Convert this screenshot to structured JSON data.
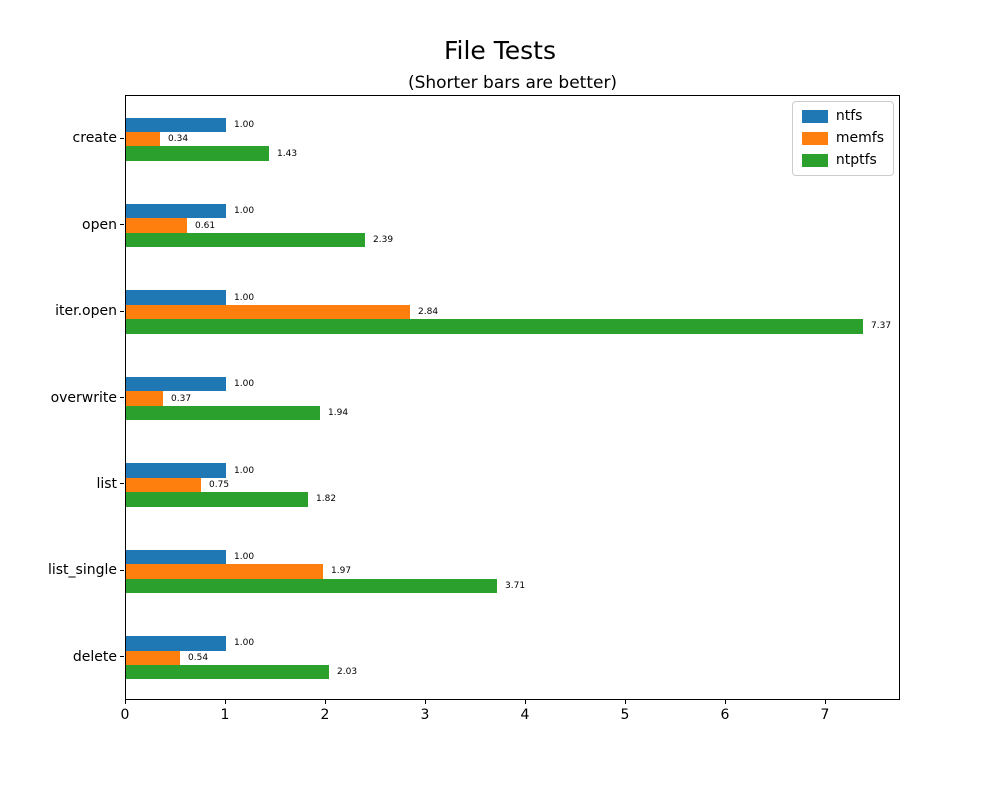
{
  "chart_data": {
    "type": "bar",
    "orientation": "horizontal",
    "title": "File Tests",
    "subtitle": "(Shorter bars are better)",
    "xlabel": "",
    "ylabel": "",
    "grid": false,
    "categories": [
      "create",
      "open",
      "iter.open",
      "overwrite",
      "list",
      "list_single",
      "delete"
    ],
    "series": [
      {
        "name": "ntfs",
        "color": "#1f77b4",
        "values": [
          1.0,
          1.0,
          1.0,
          1.0,
          1.0,
          1.0,
          1.0
        ],
        "labels": [
          "1.00",
          "1.00",
          "1.00",
          "1.00",
          "1.00",
          "1.00",
          "1.00"
        ]
      },
      {
        "name": "memfs",
        "color": "#ff7f0e",
        "values": [
          0.34,
          0.61,
          2.84,
          0.37,
          0.75,
          1.97,
          0.54
        ],
        "labels": [
          "0.34",
          "0.61",
          "2.84",
          "0.37",
          "0.75",
          "1.97",
          "0.54"
        ]
      },
      {
        "name": "ntptfs",
        "color": "#2ca02c",
        "values": [
          1.43,
          2.39,
          7.37,
          1.94,
          1.82,
          3.71,
          2.03
        ],
        "labels": [
          "1.43",
          "2.39",
          "7.37",
          "1.94",
          "1.82",
          "3.71",
          "2.03"
        ]
      }
    ],
    "xtick_labels": [
      "0",
      "1",
      "2",
      "3",
      "4",
      "5",
      "6",
      "7"
    ],
    "xtick_values": [
      0,
      1,
      2,
      3,
      4,
      5,
      6,
      7
    ],
    "xlim": [
      0,
      7.75
    ],
    "legend": {
      "position": "upper right",
      "entries": [
        "ntfs",
        "memfs",
        "ntptfs"
      ]
    }
  }
}
